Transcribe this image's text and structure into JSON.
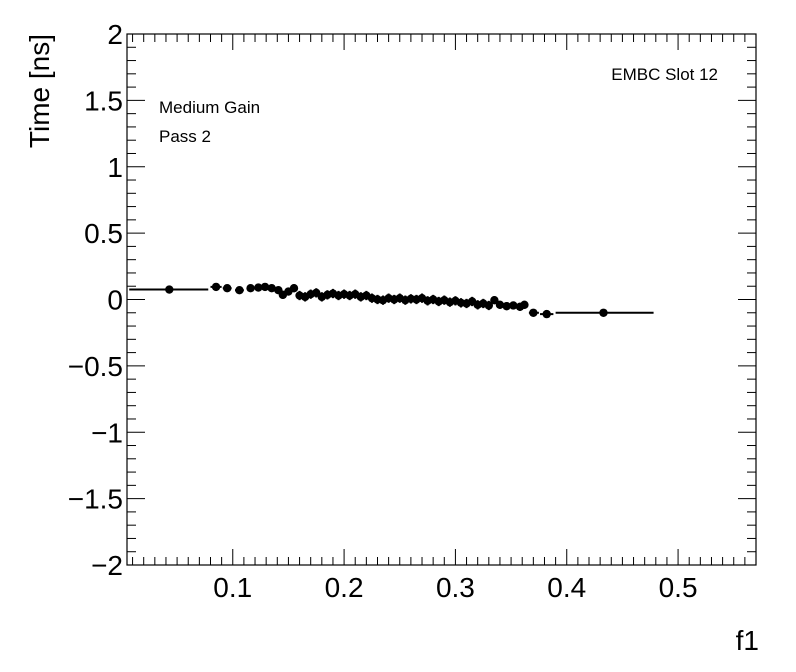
{
  "chart_data": {
    "type": "scatter",
    "xlabel": "f1",
    "ylabel": "Time [ns]",
    "xlim": [
      0.005,
      0.57
    ],
    "ylim": [
      -2,
      2
    ],
    "x_ticks": [
      0.1,
      0.2,
      0.3,
      0.4,
      0.5
    ],
    "x_tick_labels": [
      "0.1",
      "0.2",
      "0.3",
      "0.4",
      "0.5"
    ],
    "y_ticks": [
      -2,
      -1.5,
      -1,
      -0.5,
      0,
      0.5,
      1,
      1.5,
      2
    ],
    "y_tick_labels": [
      "−2",
      "−1.5",
      "−1",
      "−0.5",
      "0",
      "0.5",
      "1",
      "1.5",
      "2"
    ],
    "grid": false,
    "annotations": {
      "slot": "EMBC Slot 12",
      "gain": "Medium Gain",
      "pass": "Pass 2"
    },
    "series": [
      {
        "points": [
          {
            "x": 0.043,
            "y": 0.075,
            "xlo": 0.007,
            "xhi": 0.078,
            "err": 0.01
          },
          {
            "x": 0.085,
            "y": 0.095,
            "xlo": 0.08,
            "xhi": 0.09,
            "err": 0.012
          },
          {
            "x": 0.095,
            "y": 0.085,
            "xlo": 0.091,
            "xhi": 0.099,
            "err": 0.012
          },
          {
            "x": 0.106,
            "y": 0.07,
            "xlo": 0.102,
            "xhi": 0.11,
            "err": 0.015
          },
          {
            "x": 0.116,
            "y": 0.085,
            "xlo": 0.113,
            "xhi": 0.119,
            "err": 0.018
          },
          {
            "x": 0.123,
            "y": 0.09,
            "xlo": 0.121,
            "xhi": 0.125,
            "err": 0.02
          },
          {
            "x": 0.129,
            "y": 0.095,
            "xlo": 0.127,
            "xhi": 0.131,
            "err": 0.02
          },
          {
            "x": 0.135,
            "y": 0.085,
            "xlo": 0.133,
            "xhi": 0.137,
            "err": 0.02
          },
          {
            "x": 0.141,
            "y": 0.07,
            "xlo": 0.139,
            "xhi": 0.143,
            "err": 0.025
          },
          {
            "x": 0.145,
            "y": 0.035,
            "xlo": 0.144,
            "xhi": 0.147,
            "err": 0.03
          },
          {
            "x": 0.15,
            "y": 0.06,
            "xlo": 0.148,
            "xhi": 0.152,
            "err": 0.03
          },
          {
            "x": 0.155,
            "y": 0.085,
            "xlo": 0.153,
            "xhi": 0.157,
            "err": 0.03
          },
          {
            "x": 0.16,
            "y": 0.03,
            "xlo": 0.158,
            "xhi": 0.162,
            "err": 0.035
          },
          {
            "x": 0.165,
            "y": 0.02,
            "xlo": 0.163,
            "xhi": 0.167,
            "err": 0.035
          },
          {
            "x": 0.17,
            "y": 0.04,
            "xlo": 0.168,
            "xhi": 0.172,
            "err": 0.035
          },
          {
            "x": 0.175,
            "y": 0.05,
            "xlo": 0.173,
            "xhi": 0.177,
            "err": 0.035
          },
          {
            "x": 0.18,
            "y": 0.02,
            "xlo": 0.178,
            "xhi": 0.182,
            "err": 0.035
          },
          {
            "x": 0.185,
            "y": 0.035,
            "xlo": 0.183,
            "xhi": 0.187,
            "err": 0.035
          },
          {
            "x": 0.19,
            "y": 0.045,
            "xlo": 0.188,
            "xhi": 0.192,
            "err": 0.035
          },
          {
            "x": 0.195,
            "y": 0.03,
            "xlo": 0.193,
            "xhi": 0.197,
            "err": 0.035
          },
          {
            "x": 0.2,
            "y": 0.04,
            "xlo": 0.198,
            "xhi": 0.202,
            "err": 0.035
          },
          {
            "x": 0.205,
            "y": 0.03,
            "xlo": 0.203,
            "xhi": 0.207,
            "err": 0.035
          },
          {
            "x": 0.21,
            "y": 0.04,
            "xlo": 0.208,
            "xhi": 0.212,
            "err": 0.035
          },
          {
            "x": 0.215,
            "y": 0.02,
            "xlo": 0.213,
            "xhi": 0.217,
            "err": 0.035
          },
          {
            "x": 0.22,
            "y": 0.03,
            "xlo": 0.218,
            "xhi": 0.222,
            "err": 0.035
          },
          {
            "x": 0.225,
            "y": 0.01,
            "xlo": 0.223,
            "xhi": 0.227,
            "err": 0.035
          },
          {
            "x": 0.23,
            "y": 0.0,
            "xlo": 0.228,
            "xhi": 0.232,
            "err": 0.035
          },
          {
            "x": 0.235,
            "y": -0.005,
            "xlo": 0.233,
            "xhi": 0.237,
            "err": 0.035
          },
          {
            "x": 0.24,
            "y": 0.01,
            "xlo": 0.238,
            "xhi": 0.242,
            "err": 0.035
          },
          {
            "x": 0.245,
            "y": 0.0,
            "xlo": 0.243,
            "xhi": 0.247,
            "err": 0.035
          },
          {
            "x": 0.25,
            "y": 0.01,
            "xlo": 0.248,
            "xhi": 0.252,
            "err": 0.035
          },
          {
            "x": 0.255,
            "y": -0.005,
            "xlo": 0.253,
            "xhi": 0.257,
            "err": 0.035
          },
          {
            "x": 0.26,
            "y": 0.005,
            "xlo": 0.258,
            "xhi": 0.262,
            "err": 0.035
          },
          {
            "x": 0.265,
            "y": 0.0,
            "xlo": 0.263,
            "xhi": 0.267,
            "err": 0.035
          },
          {
            "x": 0.27,
            "y": 0.01,
            "xlo": 0.268,
            "xhi": 0.272,
            "err": 0.035
          },
          {
            "x": 0.275,
            "y": -0.01,
            "xlo": 0.273,
            "xhi": 0.277,
            "err": 0.035
          },
          {
            "x": 0.28,
            "y": 0.0,
            "xlo": 0.278,
            "xhi": 0.282,
            "err": 0.035
          },
          {
            "x": 0.285,
            "y": -0.015,
            "xlo": 0.283,
            "xhi": 0.287,
            "err": 0.035
          },
          {
            "x": 0.29,
            "y": -0.005,
            "xlo": 0.288,
            "xhi": 0.292,
            "err": 0.035
          },
          {
            "x": 0.295,
            "y": -0.02,
            "xlo": 0.293,
            "xhi": 0.297,
            "err": 0.035
          },
          {
            "x": 0.3,
            "y": -0.01,
            "xlo": 0.298,
            "xhi": 0.302,
            "err": 0.035
          },
          {
            "x": 0.305,
            "y": -0.025,
            "xlo": 0.303,
            "xhi": 0.307,
            "err": 0.035
          },
          {
            "x": 0.31,
            "y": -0.03,
            "xlo": 0.308,
            "xhi": 0.312,
            "err": 0.035
          },
          {
            "x": 0.315,
            "y": -0.015,
            "xlo": 0.313,
            "xhi": 0.317,
            "err": 0.035
          },
          {
            "x": 0.32,
            "y": -0.04,
            "xlo": 0.318,
            "xhi": 0.322,
            "err": 0.035
          },
          {
            "x": 0.325,
            "y": -0.03,
            "xlo": 0.323,
            "xhi": 0.327,
            "err": 0.035
          },
          {
            "x": 0.33,
            "y": -0.045,
            "xlo": 0.328,
            "xhi": 0.332,
            "err": 0.035
          },
          {
            "x": 0.335,
            "y": -0.005,
            "xlo": 0.333,
            "xhi": 0.337,
            "err": 0.03
          },
          {
            "x": 0.34,
            "y": -0.04,
            "xlo": 0.338,
            "xhi": 0.342,
            "err": 0.03
          },
          {
            "x": 0.346,
            "y": -0.05,
            "xlo": 0.343,
            "xhi": 0.349,
            "err": 0.03
          },
          {
            "x": 0.352,
            "y": -0.045,
            "xlo": 0.35,
            "xhi": 0.354,
            "err": 0.03
          },
          {
            "x": 0.358,
            "y": -0.055,
            "xlo": 0.355,
            "xhi": 0.361,
            "err": 0.03
          },
          {
            "x": 0.362,
            "y": -0.04,
            "xlo": 0.36,
            "xhi": 0.364,
            "err": 0.03
          },
          {
            "x": 0.37,
            "y": -0.1,
            "xlo": 0.366,
            "xhi": 0.375,
            "err": 0.02
          },
          {
            "x": 0.382,
            "y": -0.11,
            "xlo": 0.376,
            "xhi": 0.388,
            "err": 0.015
          },
          {
            "x": 0.433,
            "y": -0.1,
            "xlo": 0.39,
            "xhi": 0.478,
            "err": 0.01
          }
        ]
      }
    ]
  }
}
